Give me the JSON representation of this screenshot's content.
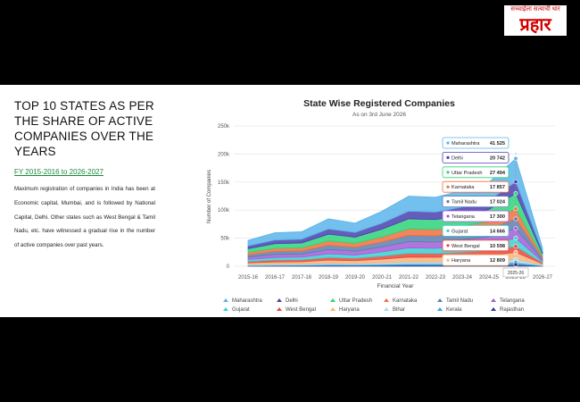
{
  "header": {
    "tagline": "सच्चाईला सत्याची धार",
    "logo": "प्रहार"
  },
  "article": {
    "title": "TOP 10 STATES AS PER THE SHARE OF ACTIVE COMPANIES OVER THE YEARS",
    "link": "FY 2015-2016 to 2026-2027",
    "body": "Maximum registration of companies in India has been at Economic capital, Mumbai, and is followed by National Capital, Delhi. Other states such as West Bengal & Tamil Nadu, etc. have witnessed a gradual rise in the number of active companies over past years."
  },
  "chart_data": {
    "type": "stacked-area",
    "title": "State Wise Registered Companies",
    "subtitle": "As on 3rd June 2026",
    "x_label": "Financial Year",
    "y_label": "Number of Companies",
    "categories": [
      "2015-16",
      "2016-17",
      "2017-18",
      "2018-19",
      "2019-20",
      "2020-21",
      "2021-22",
      "2022-23",
      "2023-24",
      "2024-25",
      "2025-26",
      "2026-27"
    ],
    "ylim": [
      0,
      250000
    ],
    "yticks": [
      0,
      {
        "value": 50000,
        "label": "50k"
      },
      {
        "value": 100000,
        "label": "100k"
      },
      {
        "value": 150000,
        "label": "150k"
      },
      {
        "value": 200000,
        "label": "200k"
      },
      {
        "value": 250000,
        "label": "250k"
      }
    ],
    "grid": true,
    "series": [
      {
        "name": "Maharashtra",
        "color": "#5ab4ea",
        "values": [
          10000,
          12900,
          13300,
          18300,
          16600,
          21200,
          27000,
          26600,
          29100,
          32400,
          41525,
          7100
        ],
        "value_labels": [
          null,
          null,
          null,
          null,
          null,
          null,
          null,
          null,
          null,
          null,
          "41 525",
          null
        ]
      },
      {
        "name": "Delhi",
        "color": "#4a3fb0",
        "values": [
          5000,
          6400,
          6600,
          9100,
          8300,
          10600,
          13500,
          13200,
          14500,
          16100,
          20742,
          3500
        ],
        "value_labels": [
          null,
          null,
          null,
          null,
          null,
          null,
          null,
          null,
          null,
          null,
          "20 742",
          null
        ]
      },
      {
        "name": "Uttar Pradesh",
        "color": "#2ed47a",
        "values": [
          6600,
          8500,
          8800,
          12100,
          11000,
          14000,
          17900,
          17600,
          19300,
          21500,
          27494,
          4700
        ],
        "value_labels": [
          null,
          null,
          null,
          null,
          null,
          null,
          null,
          null,
          null,
          null,
          "27 494",
          null
        ]
      },
      {
        "name": "Karnataka",
        "color": "#f0703c",
        "values": [
          4300,
          5500,
          5700,
          7900,
          7200,
          9100,
          11600,
          11500,
          12500,
          14000,
          17857,
          3000
        ],
        "value_labels": [
          null,
          null,
          null,
          null,
          null,
          null,
          null,
          null,
          null,
          null,
          "17 857",
          null
        ]
      },
      {
        "name": "Tamil Nadu",
        "color": "#5a7fb0",
        "values": [
          4100,
          5300,
          5400,
          7500,
          6800,
          8700,
          11100,
          10900,
          11900,
          13300,
          17024,
          2900
        ],
        "value_labels": [
          null,
          null,
          null,
          null,
          null,
          null,
          null,
          null,
          null,
          null,
          "17 024",
          null
        ]
      },
      {
        "name": "Telangana",
        "color": "#a35ed8",
        "values": [
          4200,
          5400,
          5500,
          7600,
          6900,
          8800,
          11200,
          11100,
          12100,
          13500,
          17300,
          2900
        ],
        "value_labels": [
          null,
          null,
          null,
          null,
          null,
          null,
          null,
          null,
          null,
          null,
          "17 300",
          null
        ]
      },
      {
        "name": "Gujarat",
        "color": "#3ccfcf",
        "values": [
          3500,
          4600,
          4700,
          6500,
          5900,
          7500,
          9600,
          9400,
          10300,
          11500,
          14666,
          2500
        ],
        "value_labels": [
          null,
          null,
          null,
          null,
          null,
          null,
          null,
          null,
          null,
          null,
          "14 666",
          null
        ]
      },
      {
        "name": "West Bengal",
        "color": "#e8483c",
        "values": [
          2500,
          3300,
          3400,
          4700,
          4200,
          5400,
          6900,
          6800,
          7400,
          8300,
          10598,
          1800
        ],
        "value_labels": [
          null,
          null,
          null,
          null,
          null,
          null,
          null,
          null,
          null,
          null,
          "10 598",
          null
        ]
      },
      {
        "name": "Haryana",
        "color": "#f6b47a",
        "values": [
          3100,
          4000,
          4100,
          5600,
          5100,
          6500,
          8300,
          8200,
          9000,
          10000,
          12809,
          2200
        ],
        "value_labels": [
          null,
          null,
          null,
          null,
          null,
          null,
          null,
          null,
          null,
          null,
          "12 809",
          null
        ]
      },
      {
        "name": "Bihar",
        "color": "#a9dcf2",
        "values": [
          1200,
          1600,
          1600,
          2200,
          2000,
          2600,
          3300,
          3200,
          3500,
          3900,
          5000,
          900
        ]
      },
      {
        "name": "Kerala",
        "color": "#3a9fd8",
        "values": [
          1000,
          1200,
          1300,
          1800,
          1600,
          2000,
          2600,
          2600,
          2800,
          3100,
          4000,
          700
        ]
      },
      {
        "name": "Rajasthan",
        "color": "#2c3d82",
        "values": [
          700,
          900,
          1000,
          1300,
          1200,
          1500,
          2000,
          1900,
          2100,
          2300,
          3000,
          500
        ]
      }
    ]
  }
}
